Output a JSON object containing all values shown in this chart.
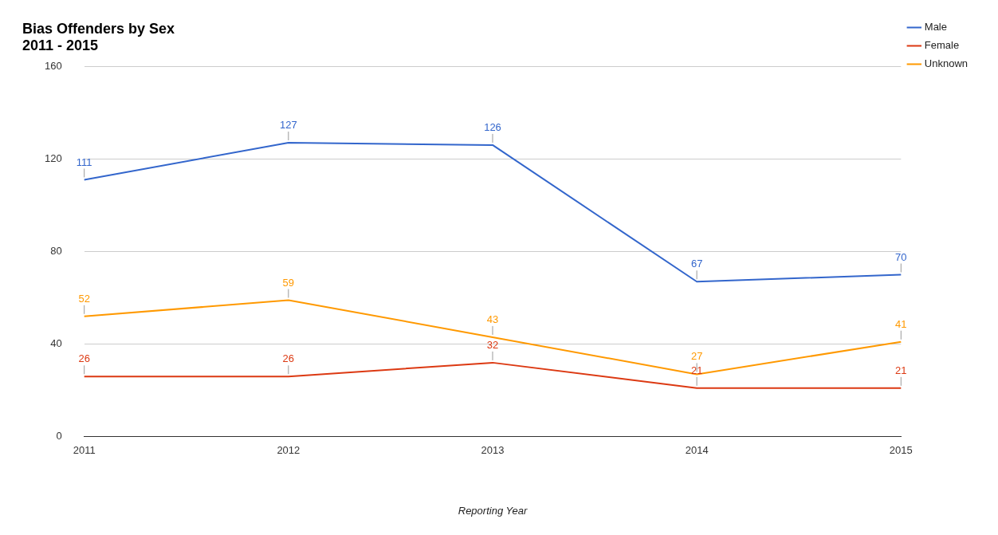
{
  "chart_data": {
    "type": "line",
    "title": "Bias Offenders by Sex",
    "subtitle": "2011 - 2015",
    "xlabel": "Reporting Year",
    "categories": [
      "2011",
      "2012",
      "2013",
      "2014",
      "2015"
    ],
    "series": [
      {
        "name": "Male",
        "color": "#3366cc",
        "values": [
          111,
          127,
          126,
          67,
          70
        ]
      },
      {
        "name": "Female",
        "color": "#dc3912",
        "values": [
          26,
          26,
          32,
          21,
          21
        ]
      },
      {
        "name": "Unknown",
        "color": "#ff9900",
        "values": [
          52,
          59,
          43,
          27,
          41
        ]
      }
    ],
    "ylim": [
      0,
      160
    ],
    "yticks": [
      0,
      40,
      80,
      120,
      160
    ],
    "grid": "y",
    "legend": "top right",
    "marker": "none",
    "line_style": "solid",
    "data_labels": true
  }
}
